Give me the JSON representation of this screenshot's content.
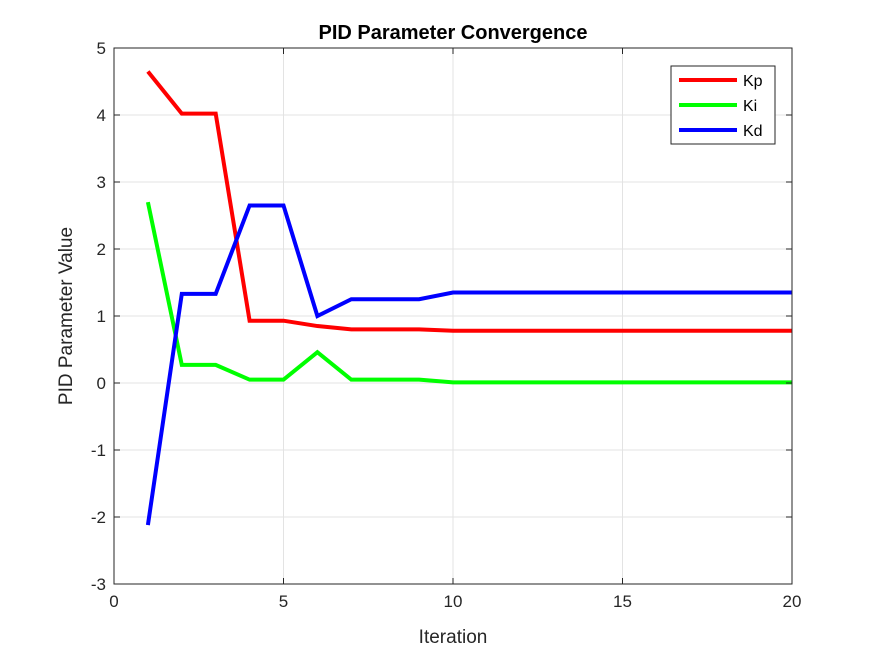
{
  "chart_data": {
    "type": "line",
    "title": "PID Parameter Convergence",
    "xlabel": "Iteration",
    "ylabel": "PID Parameter Value",
    "xlim": [
      0,
      20
    ],
    "ylim": [
      -3,
      5
    ],
    "xticks": [
      0,
      5,
      10,
      15,
      20
    ],
    "yticks": [
      -3,
      -2,
      -1,
      0,
      1,
      2,
      3,
      4,
      5
    ],
    "grid": true,
    "legend_position": "top-right",
    "x": [
      1,
      2,
      3,
      4,
      5,
      6,
      7,
      8,
      9,
      10,
      11,
      12,
      13,
      14,
      15,
      16,
      17,
      18,
      19,
      20
    ],
    "series": [
      {
        "name": "Kp",
        "color": "#ff0000",
        "values": [
          4.65,
          4.02,
          4.02,
          0.93,
          0.93,
          0.85,
          0.8,
          0.8,
          0.8,
          0.78,
          0.78,
          0.78,
          0.78,
          0.78,
          0.78,
          0.78,
          0.78,
          0.78,
          0.78,
          0.78
        ]
      },
      {
        "name": "Ki",
        "color": "#00ff00",
        "values": [
          2.7,
          0.27,
          0.27,
          0.05,
          0.05,
          0.46,
          0.05,
          0.05,
          0.05,
          0.01,
          0.01,
          0.01,
          0.01,
          0.01,
          0.01,
          0.01,
          0.01,
          0.01,
          0.01,
          0.01
        ]
      },
      {
        "name": "Kd",
        "color": "#0000ff",
        "values": [
          -2.12,
          1.33,
          1.33,
          2.65,
          2.65,
          1.0,
          1.25,
          1.25,
          1.25,
          1.35,
          1.35,
          1.35,
          1.35,
          1.35,
          1.35,
          1.35,
          1.35,
          1.35,
          1.35,
          1.35
        ]
      }
    ]
  }
}
